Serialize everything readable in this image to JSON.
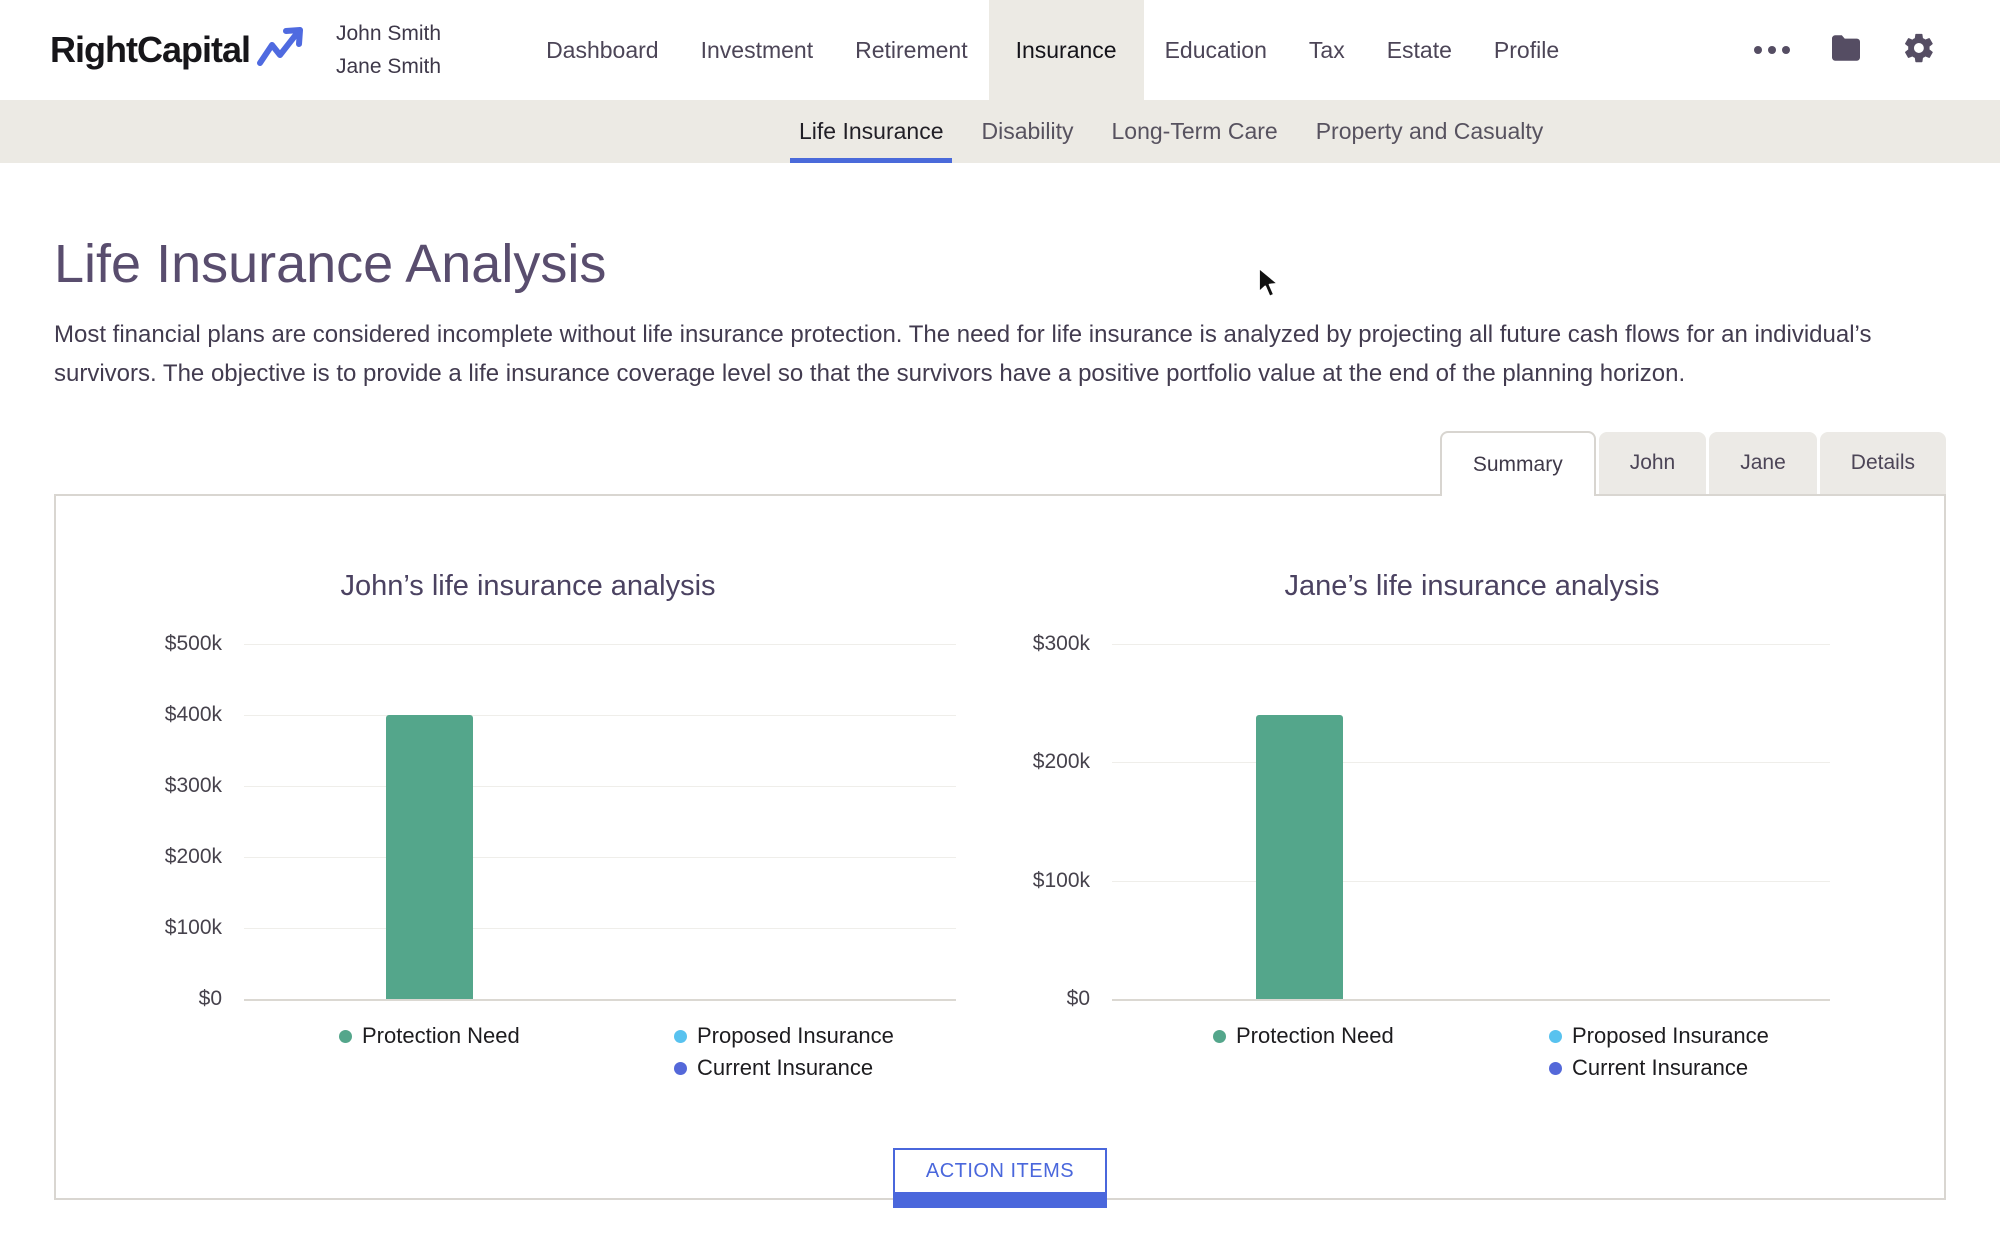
{
  "brand": {
    "logo_text": "RightCapital",
    "client_primary": "John Smith",
    "client_secondary": "Jane Smith"
  },
  "header": {
    "nav_items": [
      {
        "label": "Dashboard",
        "active": false
      },
      {
        "label": "Investment",
        "active": false
      },
      {
        "label": "Retirement",
        "active": false
      },
      {
        "label": "Insurance",
        "active": true
      },
      {
        "label": "Education",
        "active": false
      },
      {
        "label": "Tax",
        "active": false
      },
      {
        "label": "Estate",
        "active": false
      },
      {
        "label": "Profile",
        "active": false
      }
    ],
    "icons": [
      "ellipsis",
      "folder",
      "gear"
    ]
  },
  "subnav": {
    "items": [
      {
        "label": "Life Insurance",
        "active": true
      },
      {
        "label": "Disability",
        "active": false
      },
      {
        "label": "Long-Term Care",
        "active": false
      },
      {
        "label": "Property and Casualty",
        "active": false
      }
    ],
    "active_underline_color": "#4a6ada"
  },
  "page": {
    "title": "Life Insurance Analysis",
    "description": "Most financial plans are considered incomplete without life insurance protection. The need for life insurance is analyzed by projecting all future cash flows for an individual’s survivors. The objective is to provide a life insurance coverage level so that the survivors have a positive portfolio value at the end of the planning horizon."
  },
  "tabs": [
    {
      "label": "Summary",
      "active": true
    },
    {
      "label": "John",
      "active": false
    },
    {
      "label": "Jane",
      "active": false
    },
    {
      "label": "Details",
      "active": false
    }
  ],
  "action_button": {
    "label": "ACTION ITEMS",
    "color": "#4a67dc"
  },
  "colors": {
    "accent_blue": "#4a67dc",
    "subnav_underline": "#4a6ada",
    "beige_band": "#eceae4",
    "bar_green": "#54a68b",
    "proposed_light_blue": "#58c2ef",
    "current_indigo": "#5468d9"
  },
  "chart_data": [
    {
      "type": "bar",
      "title": "John’s life insurance analysis",
      "categories": [
        "Protection Need"
      ],
      "series": [
        {
          "name": "Protection Need",
          "values": [
            400000
          ],
          "color": "#54a68b"
        },
        {
          "name": "Proposed Insurance",
          "values": [
            0
          ],
          "color": "#58c2ef"
        },
        {
          "name": "Current Insurance",
          "values": [
            0
          ],
          "color": "#5468d9"
        }
      ],
      "xlabel": "",
      "ylabel": "",
      "ylim": [
        0,
        500000
      ],
      "yticks": [
        {
          "label": "$500k",
          "value": 500000
        },
        {
          "label": "$400k",
          "value": 400000
        },
        {
          "label": "$300k",
          "value": 300000
        },
        {
          "label": "$200k",
          "value": 200000
        },
        {
          "label": "$100k",
          "value": 100000
        },
        {
          "label": "$0",
          "value": 0
        }
      ],
      "grid": "horizontal-only",
      "legend_position": "bottom"
    },
    {
      "type": "bar",
      "title": "Jane’s life insurance analysis",
      "categories": [
        "Protection Need"
      ],
      "series": [
        {
          "name": "Protection Need",
          "values": [
            240000
          ],
          "color": "#54a68b"
        },
        {
          "name": "Proposed Insurance",
          "values": [
            0
          ],
          "color": "#58c2ef"
        },
        {
          "name": "Current Insurance",
          "values": [
            0
          ],
          "color": "#5468d9"
        }
      ],
      "xlabel": "",
      "ylabel": "",
      "ylim": [
        0,
        300000
      ],
      "yticks": [
        {
          "label": "$300k",
          "value": 300000
        },
        {
          "label": "$200k",
          "value": 200000
        },
        {
          "label": "$100k",
          "value": 100000
        },
        {
          "label": "$0",
          "value": 0
        }
      ],
      "grid": "horizontal-only",
      "legend_position": "bottom"
    }
  ]
}
